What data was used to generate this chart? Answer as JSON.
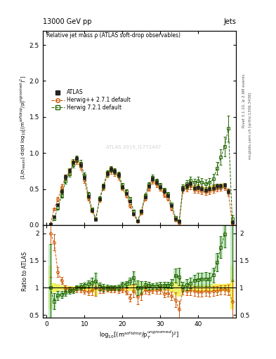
{
  "title_left": "13000 GeV pp",
  "title_right": "Jets",
  "panel_title": "Relative jet mass ρ (ATLAS soft-drop observables)",
  "ylabel_main": "(1/σ$_{resum}$) dσ/d log$_{10}$[(m$^{soft drop}$/p$_T^{ungroomed}$)$^2$]",
  "ylabel_ratio": "Ratio to ATLAS",
  "xlabel": "log$_{10}$[(m$^{soft drop}$/p$_T^{ungroomed}$)$^2$]",
  "right_label": "Rivet 3.1.10, ≥ 2.9M events",
  "right_label2": "mcplots.cern.ch [arXiv:1306.3436]",
  "watermark": "ATLAS 2019_I1772447",
  "xlim": [
    -1,
    50
  ],
  "ylim_main": [
    0,
    2.7
  ],
  "ylim_ratio": [
    0.45,
    2.15
  ],
  "atlas_x": [
    1,
    2,
    3,
    4,
    5,
    6,
    7,
    8,
    9,
    10,
    11,
    12,
    13,
    14,
    15,
    16,
    17,
    18,
    19,
    20,
    21,
    22,
    23,
    24,
    25,
    26,
    27,
    28,
    29,
    30,
    31,
    32,
    33,
    34,
    35,
    36,
    37,
    38,
    39,
    40,
    41,
    42,
    43,
    44,
    45,
    46,
    47,
    48,
    49
  ],
  "atlas_y": [
    0.01,
    0.12,
    0.28,
    0.47,
    0.67,
    0.76,
    0.88,
    0.92,
    0.84,
    0.66,
    0.4,
    0.2,
    0.08,
    0.36,
    0.54,
    0.72,
    0.78,
    0.75,
    0.7,
    0.53,
    0.44,
    0.33,
    0.16,
    0.06,
    0.19,
    0.39,
    0.54,
    0.64,
    0.59,
    0.53,
    0.47,
    0.41,
    0.27,
    0.09,
    0.05,
    0.51,
    0.54,
    0.57,
    0.52,
    0.53,
    0.51,
    0.49,
    0.51,
    0.52,
    0.54,
    0.54,
    0.55,
    0.47,
    0.04
  ],
  "atlas_yerr": [
    0.004,
    0.01,
    0.018,
    0.022,
    0.028,
    0.028,
    0.032,
    0.036,
    0.036,
    0.03,
    0.022,
    0.016,
    0.012,
    0.022,
    0.028,
    0.028,
    0.028,
    0.028,
    0.028,
    0.022,
    0.022,
    0.018,
    0.012,
    0.008,
    0.018,
    0.022,
    0.028,
    0.028,
    0.028,
    0.028,
    0.022,
    0.022,
    0.018,
    0.012,
    0.008,
    0.036,
    0.036,
    0.036,
    0.036,
    0.036,
    0.036,
    0.036,
    0.036,
    0.036,
    0.036,
    0.036,
    0.036,
    0.036,
    0.016
  ],
  "hpp_x": [
    1,
    2,
    3,
    4,
    5,
    6,
    7,
    8,
    9,
    10,
    11,
    12,
    13,
    14,
    15,
    16,
    17,
    18,
    19,
    20,
    21,
    22,
    23,
    24,
    25,
    26,
    27,
    28,
    29,
    30,
    31,
    32,
    33,
    34,
    35,
    36,
    37,
    38,
    39,
    40,
    41,
    42,
    43,
    44,
    45,
    46,
    47,
    48,
    49
  ],
  "hpp_y": [
    0.02,
    0.22,
    0.36,
    0.53,
    0.66,
    0.74,
    0.84,
    0.89,
    0.81,
    0.62,
    0.37,
    0.19,
    0.08,
    0.35,
    0.52,
    0.7,
    0.75,
    0.72,
    0.67,
    0.51,
    0.41,
    0.27,
    0.15,
    0.05,
    0.17,
    0.37,
    0.51,
    0.61,
    0.56,
    0.51,
    0.42,
    0.37,
    0.23,
    0.07,
    0.03,
    0.49,
    0.51,
    0.54,
    0.49,
    0.49,
    0.47,
    0.46,
    0.47,
    0.49,
    0.51,
    0.52,
    0.53,
    0.45,
    0.03
  ],
  "hpp_yerr": [
    0.008,
    0.018,
    0.025,
    0.03,
    0.036,
    0.036,
    0.045,
    0.045,
    0.045,
    0.036,
    0.025,
    0.018,
    0.012,
    0.025,
    0.036,
    0.036,
    0.036,
    0.036,
    0.036,
    0.025,
    0.025,
    0.022,
    0.018,
    0.008,
    0.022,
    0.025,
    0.036,
    0.036,
    0.036,
    0.036,
    0.03,
    0.025,
    0.022,
    0.012,
    0.008,
    0.045,
    0.045,
    0.045,
    0.045,
    0.045,
    0.045,
    0.045,
    0.045,
    0.045,
    0.045,
    0.045,
    0.045,
    0.045,
    0.016
  ],
  "h7_x": [
    1,
    2,
    3,
    4,
    5,
    6,
    7,
    8,
    9,
    10,
    11,
    12,
    13,
    14,
    15,
    16,
    17,
    18,
    19,
    20,
    21,
    22,
    23,
    24,
    25,
    26,
    27,
    28,
    29,
    30,
    31,
    32,
    33,
    34,
    35,
    36,
    37,
    38,
    39,
    40,
    41,
    42,
    43,
    44,
    45,
    46,
    47,
    48,
    49
  ],
  "h7_y": [
    0.01,
    0.09,
    0.24,
    0.41,
    0.61,
    0.71,
    0.84,
    0.92,
    0.86,
    0.69,
    0.43,
    0.22,
    0.09,
    0.37,
    0.54,
    0.72,
    0.78,
    0.75,
    0.7,
    0.56,
    0.47,
    0.37,
    0.19,
    0.06,
    0.19,
    0.41,
    0.56,
    0.66,
    0.61,
    0.55,
    0.49,
    0.43,
    0.29,
    0.11,
    0.06,
    0.52,
    0.57,
    0.62,
    0.59,
    0.61,
    0.59,
    0.57,
    0.59,
    0.64,
    0.79,
    0.94,
    1.09,
    1.34,
    0.09
  ],
  "h7_yerr": [
    0.008,
    0.018,
    0.025,
    0.03,
    0.036,
    0.036,
    0.045,
    0.045,
    0.045,
    0.036,
    0.025,
    0.018,
    0.012,
    0.025,
    0.036,
    0.036,
    0.036,
    0.036,
    0.036,
    0.025,
    0.025,
    0.022,
    0.018,
    0.008,
    0.022,
    0.025,
    0.036,
    0.036,
    0.036,
    0.036,
    0.03,
    0.025,
    0.022,
    0.012,
    0.008,
    0.045,
    0.054,
    0.054,
    0.054,
    0.063,
    0.063,
    0.063,
    0.063,
    0.072,
    0.09,
    0.108,
    0.135,
    0.18,
    0.045
  ],
  "atlas_color": "#222222",
  "hpp_color": "#cc5500",
  "h7_color": "#226600",
  "band_yellow": "#eeee44",
  "band_green_light": "#aaddaa",
  "band_green_dark": "#55bb55"
}
